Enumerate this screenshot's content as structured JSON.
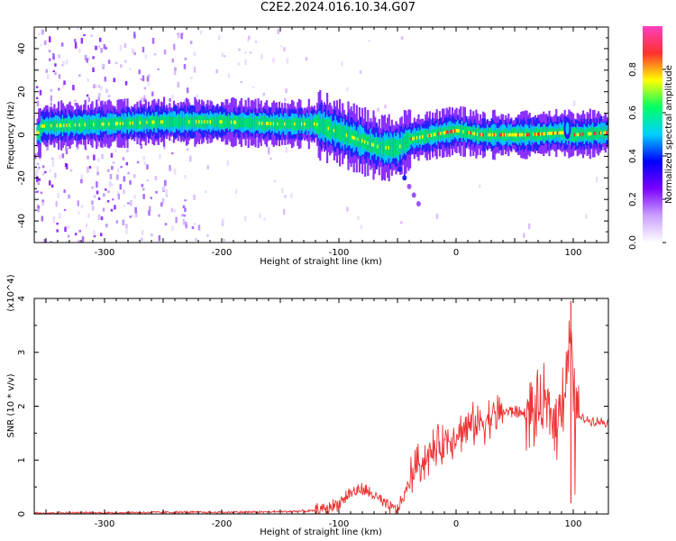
{
  "title": "C2E2.2024.016.10.34.G07",
  "chart_data": [
    {
      "type": "heatmap",
      "xlabel": "Height of straight line (km)",
      "ylabel": "Frequency (Hz)",
      "xlim": [
        -360,
        130
      ],
      "ylim": [
        -50,
        50
      ],
      "xticks": [
        -300,
        -200,
        -100,
        0,
        100
      ],
      "yticks": [
        -40,
        -20,
        0,
        20,
        40
      ],
      "colorbar": {
        "label": "Normalized spectral amplitude",
        "range": [
          0,
          1
        ],
        "ticks": [
          0.0,
          0.2,
          0.4,
          0.6,
          0.8
        ],
        "colors": [
          "#ffffff",
          "#c9a0ff",
          "#7a00ff",
          "#0000ff",
          "#00d0ff",
          "#00ff66",
          "#ffff00",
          "#ff3030",
          "#ff40c0"
        ]
      },
      "ridge": [
        {
          "x": -355,
          "y": 4
        },
        {
          "x": -300,
          "y": 5
        },
        {
          "x": -250,
          "y": 6
        },
        {
          "x": -200,
          "y": 6
        },
        {
          "x": -150,
          "y": 5
        },
        {
          "x": -120,
          "y": 5
        },
        {
          "x": -100,
          "y": 1
        },
        {
          "x": -80,
          "y": -3
        },
        {
          "x": -65,
          "y": -6
        },
        {
          "x": -50,
          "y": -6
        },
        {
          "x": -40,
          "y": -2
        },
        {
          "x": -20,
          "y": 0
        },
        {
          "x": 0,
          "y": 2
        },
        {
          "x": 20,
          "y": 0
        },
        {
          "x": 60,
          "y": 0
        },
        {
          "x": 90,
          "y": 1
        },
        {
          "x": 100,
          "y": 0
        },
        {
          "x": 130,
          "y": 1
        }
      ]
    },
    {
      "type": "line",
      "xlabel": "Height of straight line (km)",
      "ylabel": "SNR (10 * v/v)",
      "yscale_label": "(x10^4)",
      "xlim": [
        -360,
        130
      ],
      "ylim": [
        0,
        4
      ],
      "xticks": [
        -300,
        -200,
        -100,
        0,
        100
      ],
      "yticks": [
        0,
        1,
        2,
        3,
        4
      ],
      "line_color": "#ee3333",
      "series": [
        {
          "x": [
            -360,
            -300,
            -250,
            -200,
            -150,
            -120,
            -110,
            -100,
            -90,
            -80,
            -70,
            -60,
            -50,
            -45,
            -40,
            -35,
            -30,
            -25,
            -20,
            -15,
            -10,
            -5,
            0,
            10,
            20,
            30,
            40,
            50,
            60,
            70,
            75,
            80,
            85,
            90,
            95,
            98,
            100,
            105,
            110,
            120,
            130
          ],
          "values": [
            0.02,
            0.02,
            0.03,
            0.03,
            0.04,
            0.06,
            0.1,
            0.2,
            0.4,
            0.45,
            0.35,
            0.15,
            0.08,
            0.3,
            0.6,
            0.9,
            0.95,
            1.05,
            1.15,
            1.25,
            1.35,
            1.4,
            1.5,
            1.6,
            1.7,
            1.8,
            1.9,
            1.9,
            1.85,
            1.9,
            2.0,
            1.9,
            1.7,
            2.0,
            2.6,
            3.6,
            2.2,
            1.8,
            1.75,
            1.72,
            1.7
          ]
        }
      ]
    }
  ]
}
